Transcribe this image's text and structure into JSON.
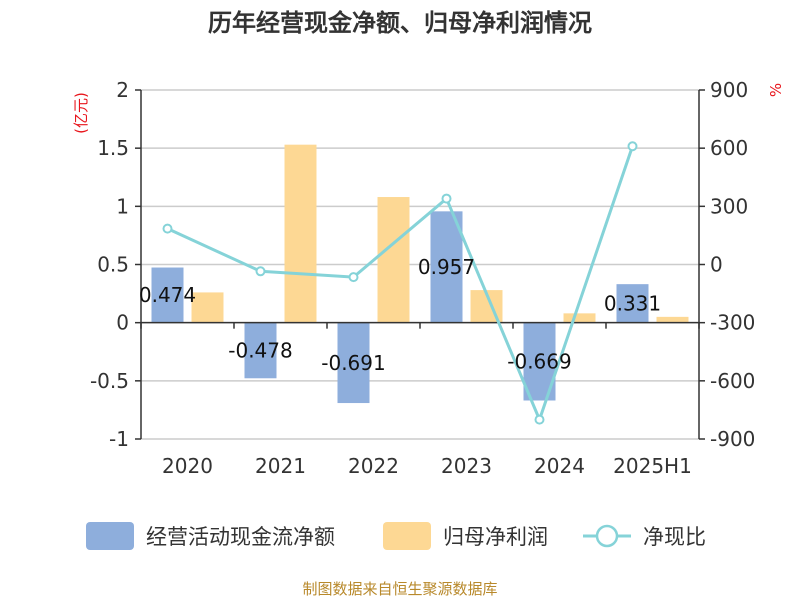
{
  "title": "历年经营现金净额、归母净利润情况",
  "source": "制图数据来自恒生聚源数据库",
  "colors": {
    "cash_flow": "#8eaedc",
    "net_profit": "#fdd894",
    "ratio_line": "#85d3d8",
    "unit_text": "#e8141b",
    "source_text": "#b8892b"
  },
  "chart_data": {
    "type": "bar",
    "title": "历年经营现金净额、归母净利润情况",
    "categories": [
      "2020",
      "2021",
      "2022",
      "2023",
      "2024",
      "2025H1"
    ],
    "y_left": {
      "unit": "(亿元)",
      "ylim": [
        -1,
        2
      ],
      "ticks": [
        -1,
        -0.5,
        0,
        0.5,
        1,
        1.5,
        2
      ],
      "tick_labels": [
        "-1",
        "-0.5",
        "0",
        "0.5",
        "1",
        "1.5",
        "2"
      ]
    },
    "y_right": {
      "unit": "%",
      "ylim": [
        -900,
        900
      ],
      "ticks": [
        -900,
        -600,
        -300,
        0,
        300,
        600,
        900
      ],
      "tick_labels": [
        "-900",
        "-600",
        "-300",
        "0",
        "300",
        "600",
        "900"
      ]
    },
    "grid": true,
    "legend_position": "bottom",
    "series": [
      {
        "name": "经营活动现金流净额",
        "type": "bar",
        "axis": "left",
        "color": "#8eaedc",
        "values": [
          0.474,
          -0.478,
          -0.691,
          0.957,
          -0.669,
          0.331
        ],
        "labels": [
          "0.474",
          "-0.478",
          "-0.691",
          "0.957",
          "-0.669",
          "0.331"
        ]
      },
      {
        "name": "归母净利润",
        "type": "bar",
        "axis": "left",
        "color": "#fdd894",
        "values": [
          0.26,
          1.53,
          1.08,
          0.28,
          0.08,
          0.05
        ]
      },
      {
        "name": "净现比",
        "type": "line",
        "axis": "right",
        "color": "#85d3d8",
        "values": [
          185,
          -35,
          -65,
          340,
          -800,
          610
        ]
      }
    ]
  }
}
